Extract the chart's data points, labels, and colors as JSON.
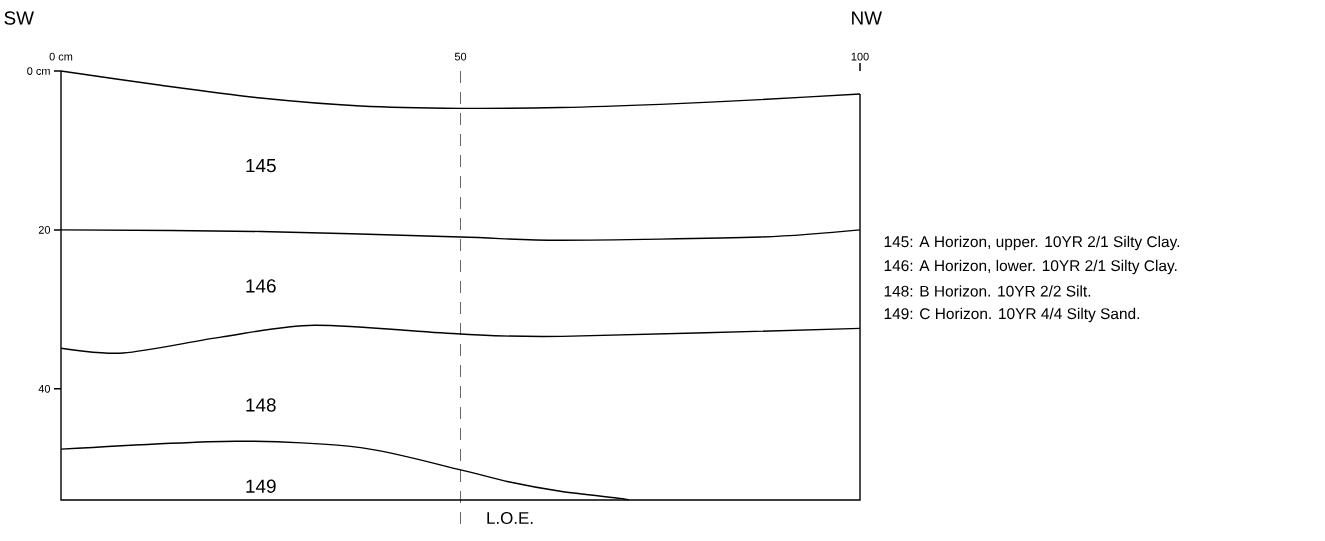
{
  "chart_data": {
    "type": "line",
    "xlim": [
      0,
      100
    ],
    "ylim": [
      54,
      0
    ],
    "xticks": [
      {
        "value": 0,
        "label": "0 cm"
      },
      50,
      100
    ],
    "yticks": [
      {
        "value": 0,
        "label": "0 cm"
      },
      20,
      40
    ],
    "marker": "none",
    "line_style": "solid",
    "grid": false,
    "series": [
      {
        "color": "#000000",
        "x": [
          0,
          12.5,
          25,
          37.5,
          50,
          62.5,
          75,
          87.5,
          100
        ],
        "values": [
          0,
          1.8,
          3.4,
          4.4,
          4.7,
          4.6,
          4.2,
          3.6,
          2.9
        ]
      },
      {
        "color": "#000000",
        "x": [
          0,
          25,
          50,
          62.5,
          87.5,
          100
        ],
        "values": [
          20,
          20.2,
          20.9,
          21.3,
          20.9,
          20
        ]
      },
      {
        "color": "#000000",
        "x": [
          0,
          7.8,
          20,
          31.7,
          50,
          62.7,
          100
        ],
        "values": [
          34.9,
          35.5,
          33.5,
          32,
          33.1,
          33.4,
          32.4
        ]
      },
      {
        "color": "#000000",
        "x": [
          0,
          21.8,
          37.5,
          50,
          56,
          62.5,
          70,
          71
        ],
        "values": [
          47.6,
          46.6,
          47.4,
          50.2,
          51.7,
          52.9,
          53.8,
          54
        ]
      }
    ],
    "ref_lines": [
      {
        "axis": "x",
        "value": 50,
        "label": "L.O.E.",
        "line_style": "dashed",
        "color": "#000000"
      }
    ],
    "annotations": [
      "SW",
      "NW",
      "145: A Horizon, upper. 10YR 2/1 Silty Clay.",
      "146: A Horizon, lower. 10YR 2/1 Silty Clay.",
      "148: B Horizon. 10YR 2/2 Silt.",
      "149: C Horizon. 10YR 4/4 Silty Sand.",
      "145",
      "146",
      "148",
      "149"
    ]
  }
}
